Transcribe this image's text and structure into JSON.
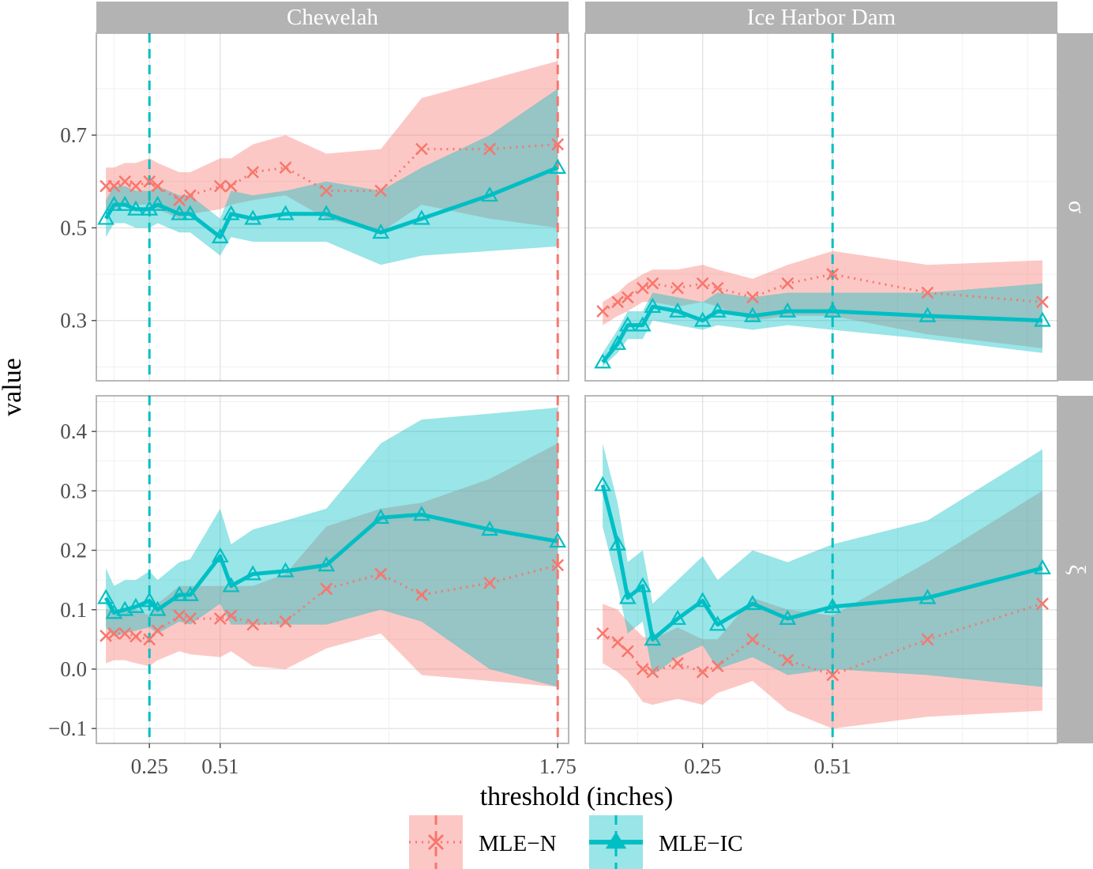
{
  "chart_data": {
    "type": "line",
    "ylabel": "value",
    "xlabel": "threshold (inches)",
    "columns": [
      "Chewelah",
      "Ice Harbor Dam"
    ],
    "rows": [
      {
        "label": "σ",
        "ylim": [
          0.17,
          0.92
        ],
        "yticks": [
          0.3,
          0.5,
          0.7
        ],
        "ytick_labels": [
          "0.3",
          "0.5",
          "0.7"
        ]
      },
      {
        "label": "ξ",
        "ylim": [
          -0.125,
          0.46
        ],
        "yticks": [
          -0.1,
          0.0,
          0.1,
          0.2,
          0.3,
          0.4
        ],
        "ytick_labels": [
          "−0.1",
          "0.0",
          "0.1",
          "0.2",
          "0.3",
          "0.4"
        ]
      }
    ],
    "legend": {
      "position": "bottom",
      "items": [
        {
          "name": "MLE−N",
          "color": "#F8766D"
        },
        {
          "name": "MLE−IC",
          "color": "#00BFC4"
        }
      ]
    },
    "colors": {
      "mle_n": "#F8766D",
      "mle_ic": "#00BFC4",
      "strip": "#b3b3b3",
      "strip_text": "#ffffff"
    },
    "panels": [
      {
        "column": "Chewelah",
        "row": "σ",
        "xlim": [
          0.055,
          1.79
        ],
        "xticks": [
          0.25,
          0.51,
          1.75
        ],
        "xtick_labels": [
          "0.25",
          "0.51",
          "1.75"
        ],
        "vlines": [
          {
            "x": 0.25,
            "series": "MLE−IC"
          },
          {
            "x": 1.75,
            "series": "MLE−N"
          }
        ],
        "x": [
          0.09,
          0.12,
          0.16,
          0.2,
          0.25,
          0.28,
          0.36,
          0.4,
          0.51,
          0.55,
          0.63,
          0.75,
          0.9,
          1.1,
          1.25,
          1.5,
          1.75
        ],
        "series": [
          {
            "name": "MLE−N",
            "values": [
              0.59,
              0.59,
              0.6,
              0.59,
              0.6,
              0.59,
              0.56,
              0.57,
              0.59,
              0.59,
              0.62,
              0.63,
              0.58,
              0.58,
              0.67,
              0.67,
              0.68
            ],
            "lower": [
              0.54,
              0.54,
              0.55,
              0.55,
              0.55,
              0.54,
              0.52,
              0.53,
              0.54,
              0.55,
              0.56,
              0.57,
              0.52,
              0.49,
              0.55,
              0.52,
              0.5
            ],
            "upper": [
              0.63,
              0.63,
              0.64,
              0.64,
              0.65,
              0.64,
              0.62,
              0.62,
              0.65,
              0.65,
              0.68,
              0.7,
              0.66,
              0.67,
              0.78,
              0.82,
              0.86
            ]
          },
          {
            "name": "MLE−IC",
            "values": [
              0.52,
              0.55,
              0.55,
              0.54,
              0.54,
              0.55,
              0.53,
              0.53,
              0.48,
              0.53,
              0.52,
              0.53,
              0.53,
              0.49,
              0.52,
              0.57,
              0.63
            ],
            "lower": [
              0.48,
              0.51,
              0.51,
              0.5,
              0.5,
              0.51,
              0.49,
              0.49,
              0.44,
              0.48,
              0.47,
              0.47,
              0.47,
              0.42,
              0.44,
              0.45,
              0.46
            ],
            "upper": [
              0.56,
              0.59,
              0.59,
              0.58,
              0.58,
              0.59,
              0.57,
              0.57,
              0.52,
              0.58,
              0.57,
              0.58,
              0.6,
              0.58,
              0.63,
              0.7,
              0.8
            ]
          }
        ]
      },
      {
        "column": "Ice Harbor Dam",
        "row": "σ",
        "xlim": [
          0.015,
          0.96
        ],
        "xticks": [
          0.25,
          0.51
        ],
        "xtick_labels": [
          "0.25",
          "0.51"
        ],
        "vlines": [
          {
            "x": 0.51,
            "series": "MLE−IC"
          }
        ],
        "x": [
          0.05,
          0.08,
          0.1,
          0.13,
          0.15,
          0.2,
          0.25,
          0.28,
          0.35,
          0.42,
          0.51,
          0.7,
          0.93
        ],
        "series": [
          {
            "name": "MLE−N",
            "values": [
              0.32,
              0.34,
              0.35,
              0.37,
              0.38,
              0.37,
              0.38,
              0.37,
              0.35,
              0.38,
              0.4,
              0.36,
              0.34
            ],
            "lower": [
              0.29,
              0.31,
              0.32,
              0.34,
              0.34,
              0.33,
              0.34,
              0.33,
              0.3,
              0.31,
              0.31,
              0.27,
              0.24
            ],
            "upper": [
              0.34,
              0.36,
              0.38,
              0.4,
              0.41,
              0.41,
              0.42,
              0.41,
              0.39,
              0.42,
              0.45,
              0.42,
              0.43
            ]
          },
          {
            "name": "MLE−IC",
            "values": [
              0.21,
              0.25,
              0.29,
              0.29,
              0.33,
              0.32,
              0.3,
              0.32,
              0.31,
              0.32,
              0.32,
              0.31,
              0.3
            ],
            "lower": [
              0.2,
              0.23,
              0.26,
              0.26,
              0.3,
              0.29,
              0.28,
              0.29,
              0.28,
              0.29,
              0.28,
              0.26,
              0.23
            ],
            "upper": [
              0.23,
              0.28,
              0.32,
              0.32,
              0.36,
              0.35,
              0.34,
              0.36,
              0.35,
              0.36,
              0.36,
              0.36,
              0.38
            ]
          }
        ]
      },
      {
        "column": "Chewelah",
        "row": "ξ",
        "xlim": [
          0.055,
          1.79
        ],
        "xticks": [
          0.25,
          0.51,
          1.75
        ],
        "xtick_labels": [
          "0.25",
          "0.51",
          "1.75"
        ],
        "vlines": [
          {
            "x": 0.25,
            "series": "MLE−IC"
          },
          {
            "x": 1.75,
            "series": "MLE−N"
          }
        ],
        "x": [
          0.09,
          0.12,
          0.16,
          0.2,
          0.25,
          0.28,
          0.36,
          0.4,
          0.51,
          0.55,
          0.63,
          0.75,
          0.9,
          1.1,
          1.25,
          1.5,
          1.75
        ],
        "series": [
          {
            "name": "MLE−N",
            "values": [
              0.056,
              0.06,
              0.06,
              0.055,
              0.05,
              0.065,
              0.09,
              0.085,
              0.085,
              0.09,
              0.075,
              0.08,
              0.135,
              0.16,
              0.125,
              0.145,
              0.175
            ],
            "lower": [
              0.01,
              0.015,
              0.015,
              0.01,
              0.005,
              0.015,
              0.03,
              0.025,
              0.02,
              0.03,
              0.005,
              0.0,
              0.035,
              0.06,
              -0.01,
              -0.02,
              -0.03
            ],
            "upper": [
              0.1,
              0.1,
              0.1,
              0.1,
              0.09,
              0.11,
              0.14,
              0.14,
              0.14,
              0.14,
              0.14,
              0.16,
              0.24,
              0.27,
              0.28,
              0.32,
              0.38
            ]
          },
          {
            "name": "MLE−IC",
            "values": [
              0.12,
              0.095,
              0.1,
              0.105,
              0.115,
              0.1,
              0.125,
              0.125,
              0.19,
              0.14,
              0.16,
              0.165,
              0.175,
              0.255,
              0.26,
              0.235,
              0.215
            ],
            "lower": [
              0.07,
              0.055,
              0.06,
              0.065,
              0.07,
              0.06,
              0.08,
              0.075,
              0.11,
              0.075,
              0.075,
              0.075,
              0.075,
              0.1,
              0.08,
              0.0,
              -0.03
            ],
            "upper": [
              0.17,
              0.14,
              0.15,
              0.15,
              0.165,
              0.15,
              0.18,
              0.185,
              0.27,
              0.21,
              0.235,
              0.25,
              0.27,
              0.38,
              0.42,
              0.43,
              0.44
            ]
          }
        ]
      },
      {
        "column": "Ice Harbor Dam",
        "row": "ξ",
        "xlim": [
          0.015,
          0.96
        ],
        "xticks": [
          0.25,
          0.51
        ],
        "xtick_labels": [
          "0.25",
          "0.51"
        ],
        "vlines": [
          {
            "x": 0.51,
            "series": "MLE−IC"
          }
        ],
        "x": [
          0.05,
          0.08,
          0.1,
          0.13,
          0.15,
          0.2,
          0.25,
          0.28,
          0.35,
          0.42,
          0.51,
          0.7,
          0.93
        ],
        "series": [
          {
            "name": "MLE−N",
            "values": [
              0.06,
              0.045,
              0.03,
              0.0,
              -0.005,
              0.01,
              -0.005,
              0.005,
              0.05,
              0.015,
              -0.01,
              0.05,
              0.11
            ],
            "lower": [
              0.01,
              -0.005,
              -0.02,
              -0.055,
              -0.06,
              -0.05,
              -0.06,
              -0.04,
              -0.02,
              -0.07,
              -0.1,
              -0.08,
              -0.07
            ],
            "upper": [
              0.11,
              0.1,
              0.08,
              0.055,
              0.05,
              0.07,
              0.05,
              0.05,
              0.12,
              0.1,
              0.09,
              0.18,
              0.3
            ]
          },
          {
            "name": "MLE−IC",
            "values": [
              0.31,
              0.21,
              0.12,
              0.14,
              0.05,
              0.085,
              0.115,
              0.075,
              0.11,
              0.085,
              0.105,
              0.12,
              0.17
            ],
            "lower": [
              0.24,
              0.14,
              0.06,
              0.08,
              -0.01,
              0.02,
              0.04,
              0.0,
              0.02,
              -0.01,
              0.0,
              -0.01,
              -0.03
            ],
            "upper": [
              0.38,
              0.28,
              0.18,
              0.2,
              0.11,
              0.15,
              0.19,
              0.15,
              0.2,
              0.18,
              0.21,
              0.25,
              0.37
            ]
          }
        ]
      }
    ]
  }
}
